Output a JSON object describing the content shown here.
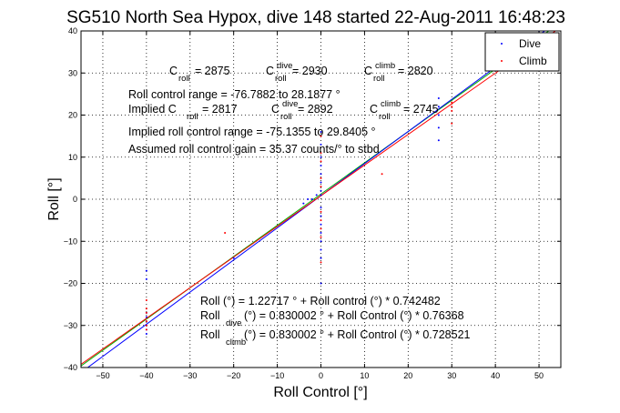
{
  "chart_data": {
    "type": "scatter",
    "title": "SG510 North Sea Hypox, dive 148 started 22-Aug-2011 16:48:23",
    "xlabel": "Roll Control [°]",
    "ylabel": "Roll [°]",
    "xlim": [
      -55,
      55
    ],
    "ylim": [
      -40,
      40
    ],
    "xticks": [
      -50,
      -40,
      -30,
      -20,
      -10,
      0,
      10,
      20,
      30,
      40,
      50
    ],
    "yticks": [
      -40,
      -30,
      -20,
      -10,
      0,
      10,
      20,
      30,
      40
    ],
    "grid": true,
    "legend": {
      "position": "top-right",
      "entries": [
        {
          "name": "Dive",
          "color": "#0000ff"
        },
        {
          "name": "Climb",
          "color": "#ff0000"
        }
      ]
    },
    "series": [
      {
        "name": "Dive",
        "color": "#0000ff",
        "points": [
          [
            -40,
            -17
          ],
          [
            -40,
            -19
          ],
          [
            -40,
            -27
          ],
          [
            -40,
            -28
          ],
          [
            -40,
            -29
          ],
          [
            -40,
            -30
          ],
          [
            -40,
            -31
          ],
          [
            -40,
            -32
          ],
          [
            -20,
            -14
          ],
          [
            -4,
            -1
          ],
          [
            -3,
            0
          ],
          [
            -2,
            0
          ],
          [
            -1,
            1
          ],
          [
            0,
            1
          ],
          [
            0,
            16
          ],
          [
            0,
            13
          ],
          [
            0,
            10
          ],
          [
            0,
            8
          ],
          [
            0,
            6
          ],
          [
            0,
            4
          ],
          [
            0,
            2
          ],
          [
            0,
            -2
          ],
          [
            0,
            -4
          ],
          [
            0,
            -6
          ],
          [
            0,
            -8
          ],
          [
            0,
            -10
          ],
          [
            0,
            -12
          ],
          [
            0,
            -14
          ],
          [
            0,
            -20
          ],
          [
            27,
            14
          ],
          [
            27,
            20
          ],
          [
            27,
            22
          ],
          [
            27,
            24
          ],
          [
            27,
            17
          ],
          [
            50,
            39
          ],
          [
            50,
            40
          ]
        ]
      },
      {
        "name": "Climb",
        "color": "#ff0000",
        "points": [
          [
            -40,
            -24
          ],
          [
            -40,
            -26
          ],
          [
            -40,
            -27
          ],
          [
            -40,
            -29
          ],
          [
            -40,
            -30
          ],
          [
            -40,
            -31
          ],
          [
            -22,
            -8
          ],
          [
            0,
            15
          ],
          [
            0,
            11
          ],
          [
            0,
            9
          ],
          [
            0,
            5
          ],
          [
            0,
            3
          ],
          [
            0,
            -3
          ],
          [
            0,
            -5
          ],
          [
            0,
            -7
          ],
          [
            0,
            -9
          ],
          [
            0,
            -15
          ],
          [
            14,
            6
          ],
          [
            30,
            18
          ],
          [
            30,
            21
          ],
          [
            30,
            23
          ],
          [
            30,
            22
          ]
        ]
      }
    ],
    "fits": [
      {
        "name": "Roll (°) = 1.22717 ° + Roll control (°) * 0.742482",
        "color": "#00b000",
        "intercept": 1.22717,
        "slope": 0.742482
      },
      {
        "name": "Roll dive (°) = 0.830002 ° + Roll Control (°) * 0.76368",
        "color": "#0000ff",
        "intercept": 0.830002,
        "slope": 0.76368
      },
      {
        "name": "Roll climb (°) = 0.830002 ° + Roll Control (°) * 0.728521",
        "color": "#ff0000",
        "intercept": 0.830002,
        "slope": 0.728521
      }
    ],
    "annotations": {
      "line1": {
        "c_base": "C",
        "c_sub": "roll",
        "c_val": " = 2875",
        "cd_base": "C",
        "cd_sup": "dive",
        "cd_sub": "roll",
        "cd_val": " = 2930",
        "cc_base": "C",
        "cc_sup": "climb",
        "cc_sub": "roll",
        "cc_val": " = 2820"
      },
      "range_text": "Roll control range = -76.7882 to 28.1877 °",
      "line2": {
        "prefix": "Implied C",
        "c_sub": "roll",
        "c_val": " = 2817",
        "cd_base": "C",
        "cd_sup": "dive",
        "cd_sub": "roll",
        "cd_val": " = 2892",
        "cc_base": "C",
        "cc_sup": "climb",
        "cc_sub": "roll",
        "cc_val": " = 2745"
      },
      "implied_range_text": "Implied roll control range = -75.1355 to 29.8405 °",
      "gain_text": "Assumed roll control gain = 35.37 counts/° to stbd",
      "fit1_text": "Roll (°) = 1.22717 ° + Roll control (°) * 0.742482",
      "fit2": {
        "base": "Roll",
        "sub": "dive",
        "rest": " (°) = 0.830002 ° + Roll Control (°) * 0.76368"
      },
      "fit3": {
        "base": "Roll",
        "sub": "climb",
        "rest": " (°) = 0.830002 ° + Roll Control (°) * 0.728521"
      }
    }
  }
}
